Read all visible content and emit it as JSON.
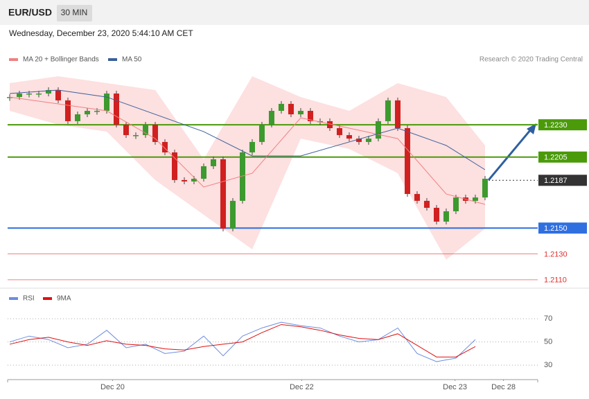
{
  "header": {
    "symbol": "EUR/USD",
    "interval": "30 MIN",
    "datetime": "Wednesday, December 23, 2020 5:44:10 AM CET"
  },
  "chart_data": [
    {
      "type": "candlestick",
      "credit": "Research © 2020 Trading Central",
      "x": [
        0,
        1,
        2,
        3,
        4,
        5,
        6,
        7,
        8,
        9,
        10,
        11,
        12,
        13,
        14,
        15,
        16,
        17,
        18,
        19,
        20,
        21,
        22,
        23,
        24,
        25,
        26,
        27,
        28,
        29,
        30,
        31,
        32,
        33,
        34,
        35,
        36,
        37,
        38,
        39,
        40,
        41,
        42,
        43,
        44,
        45,
        46,
        47,
        48,
        49
      ],
      "closes": [
        1.22515,
        1.22542,
        1.22542,
        1.22542,
        1.22569,
        1.22489,
        1.22328,
        1.22381,
        1.22408,
        1.22408,
        1.22542,
        1.22301,
        1.2222,
        1.2222,
        1.22301,
        1.22167,
        1.22086,
        1.21872,
        1.21861,
        1.21882,
        1.21979,
        1.22033,
        1.21496,
        1.21711,
        1.22086,
        1.22167,
        1.22301,
        1.22408,
        1.22462,
        1.22381,
        1.22408,
        1.22328,
        1.22328,
        1.22274,
        1.2222,
        1.22193,
        1.22167,
        1.22193,
        1.22328,
        1.22489,
        1.22274,
        1.21764,
        1.21711,
        1.21657,
        1.2155,
        1.2163,
        1.21737,
        1.21711,
        1.21737,
        1.21882
      ],
      "up_color": "#3c9a2e",
      "down_color": "#d0201f",
      "series": [
        {
          "name": "MA 20 + Bollinger Bands",
          "color": "#f08080",
          "band_color": "#fde0e0",
          "x": [
            0,
            5,
            10,
            15,
            20,
            25,
            30,
            35,
            40,
            45,
            49
          ],
          "values": [
            1.22515,
            1.22462,
            1.22408,
            1.22193,
            1.21818,
            1.21925,
            1.22354,
            1.22274,
            1.22193,
            1.21764,
            1.21684
          ],
          "upper": [
            1.22623,
            1.22676,
            1.22623,
            1.22569,
            1.22033,
            1.22676,
            1.22515,
            1.22408,
            1.22623,
            1.22515,
            1.2214
          ],
          "lower": [
            1.22408,
            1.22301,
            1.22247,
            1.21872,
            1.21603,
            1.21335,
            1.22193,
            1.22113,
            1.21925,
            1.21255,
            1.21496
          ]
        },
        {
          "name": "MA 50",
          "color": "#3a5f9a",
          "x": [
            0,
            5,
            10,
            15,
            20,
            25,
            30,
            35,
            40,
            45,
            49
          ],
          "values": [
            1.22542,
            1.22569,
            1.22515,
            1.22381,
            1.22247,
            1.22059,
            1.22059,
            1.22167,
            1.22274,
            1.2214,
            1.21952
          ]
        }
      ],
      "levels": [
        {
          "value": 1.223,
          "label": "1.2230",
          "color": "#4a9a0a",
          "style": "box"
        },
        {
          "value": 1.2205,
          "label": "1.2205",
          "color": "#4a9a0a",
          "style": "box"
        },
        {
          "value": 1.2187,
          "label": "1.2187",
          "color": "#333333",
          "style": "box-dotted"
        },
        {
          "value": 1.215,
          "label": "1.2150",
          "color": "#2f6fe0",
          "style": "box"
        },
        {
          "value": 1.213,
          "label": "1.2130",
          "color": "#e03030",
          "style": "text"
        },
        {
          "value": 1.211,
          "label": "1.2110",
          "color": "#e03030",
          "style": "text"
        }
      ],
      "xlim": [
        -0.214,
        54.36
      ],
      "ylim": [
        1.2104,
        1.2273
      ]
    },
    {
      "type": "line",
      "series": [
        {
          "name": "RSI",
          "color": "#6b8de0",
          "x": [
            0,
            2,
            4,
            6,
            8,
            10,
            12,
            14,
            16,
            18,
            20,
            22,
            24,
            26,
            28,
            30,
            32,
            34,
            36,
            38,
            40,
            42,
            44,
            46,
            48
          ],
          "values": [
            50,
            55,
            52,
            45,
            48,
            60,
            45,
            48,
            40,
            42,
            55,
            38,
            55,
            62,
            67,
            64,
            62,
            55,
            50,
            52,
            62,
            40,
            33,
            36,
            52
          ]
        },
        {
          "name": "9MA",
          "color": "#e01010",
          "x": [
            0,
            2,
            4,
            6,
            8,
            10,
            12,
            14,
            16,
            18,
            20,
            22,
            24,
            26,
            28,
            30,
            32,
            34,
            36,
            38,
            40,
            42,
            44,
            46,
            48
          ],
          "values": [
            48,
            52,
            54,
            50,
            47,
            51,
            48,
            47,
            44,
            43,
            46,
            48,
            50,
            58,
            65,
            63,
            60,
            56,
            53,
            52,
            57,
            47,
            37,
            37,
            46
          ]
        }
      ],
      "ylim": [
        19.3,
        79
      ],
      "yticks": [
        70,
        50,
        30
      ],
      "xlim": [
        -0.214,
        54.36
      ],
      "xticks": [
        {
          "value": 10.6,
          "label": "Dec 20"
        },
        {
          "value": 30.1,
          "label": "Dec 22"
        },
        {
          "value": 45.9,
          "label": "Dec 23"
        },
        {
          "value": 50.9,
          "label": "Dec 28"
        }
      ]
    }
  ]
}
